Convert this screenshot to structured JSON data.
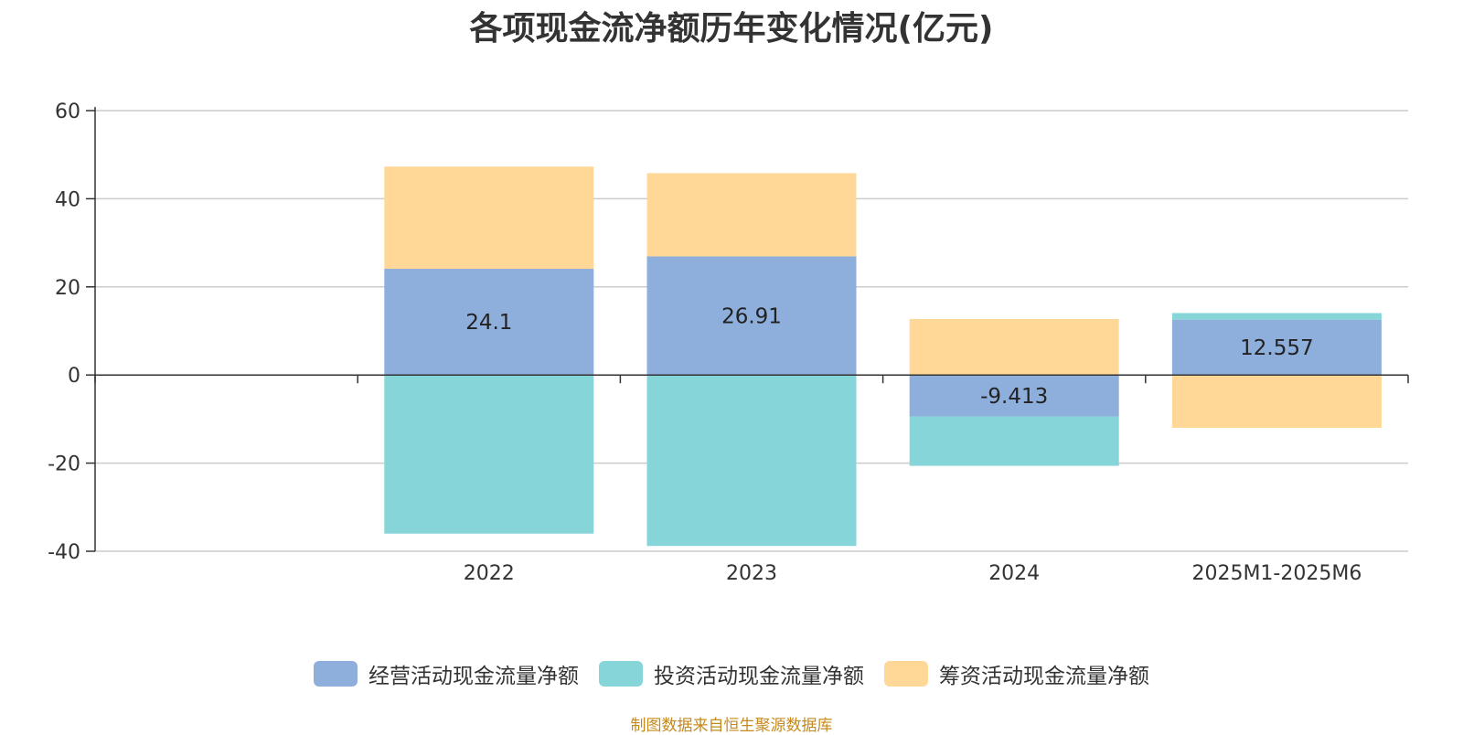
{
  "chart_data": {
    "type": "bar",
    "stacked": true,
    "title": "各项现金流净额历年变化情况(亿元)",
    "categories": [
      "",
      "2022",
      "2023",
      "2024",
      "2025M1-2025M6"
    ],
    "series": [
      {
        "name": "经营活动现金流量净额",
        "color": "#8eaedc",
        "values": [
          null,
          24.1,
          26.91,
          -9.413,
          12.557
        ],
        "labels": [
          "",
          "24.1",
          "26.91",
          "-9.413",
          "12.557"
        ]
      },
      {
        "name": "投资活动现金流量净额",
        "color": "#86d5d8",
        "values": [
          null,
          -36.0,
          -38.8,
          -11.2,
          1.5
        ]
      },
      {
        "name": "筹资活动现金流量净额",
        "color": "#ffd898",
        "values": [
          null,
          23.2,
          18.9,
          12.7,
          -12.0
        ]
      }
    ],
    "y_ticks": [
      "60",
      "40",
      "20",
      "0",
      "-20",
      "-40"
    ],
    "ylim": [
      -40,
      60
    ],
    "grid": true,
    "legend_position": "bottom"
  },
  "source_note": "制图数据来自恒生聚源数据库"
}
